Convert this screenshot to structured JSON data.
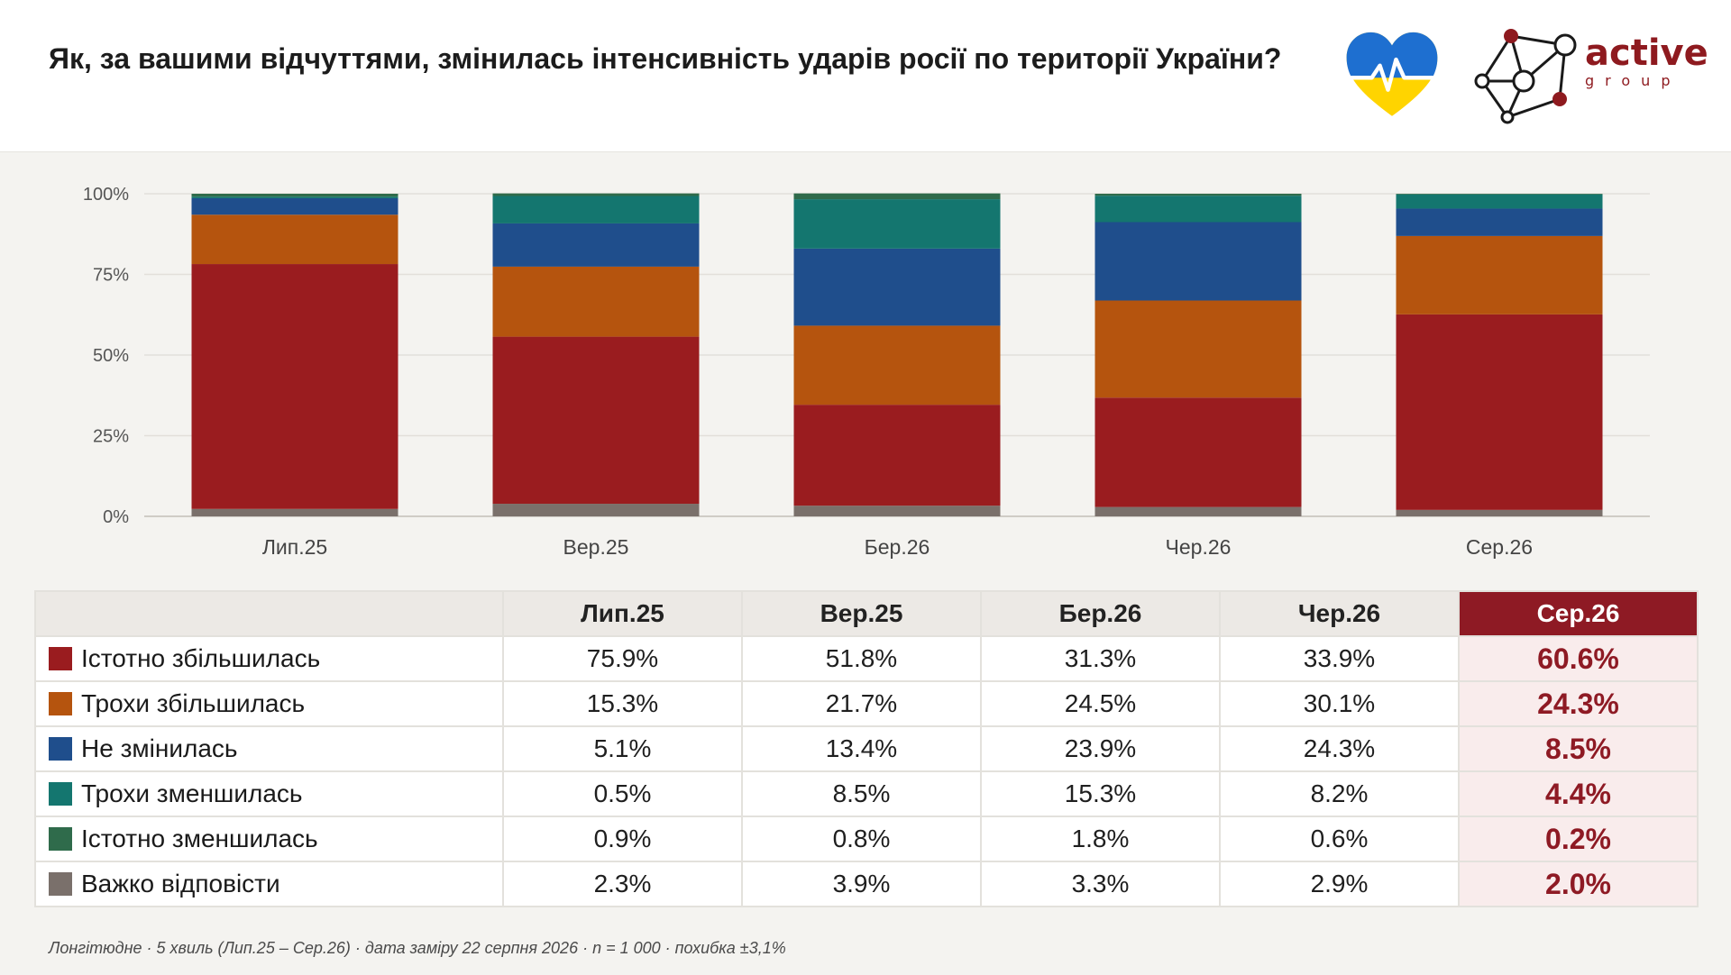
{
  "title": "Як, за вашими відчуттями, змінилась інтенсивність ударів росії по території України?",
  "logo": {
    "word": "active",
    "subword": "group"
  },
  "footnote": "Лонгітюдне · 5 хвиль (Лип.25 – Сер.26) · дата заміру 22 серпня 2026 · n = 1 000 · похибка ±3,1%",
  "colors": {
    "background_panel": "#f4f3f0",
    "highlight": "#8e1a24",
    "highlight_light": "#f9ecec"
  },
  "chart_data": {
    "type": "bar",
    "stacked": true,
    "categories": [
      "Лип.25",
      "Вер.25",
      "Бер.26",
      "Чер.26",
      "Сер.26"
    ],
    "ylim": [
      0,
      100
    ],
    "yticks": [
      "0%",
      "25%",
      "50%",
      "75%",
      "100%"
    ],
    "yticks_values": [
      0,
      25,
      50,
      75,
      100
    ],
    "grid": true,
    "stack_order_bottom_to_top": [
      "Важко відповісти",
      "Істотно збільшилась",
      "Трохи збільшилась",
      "Не змінилась",
      "Трохи зменшилась",
      "Істотно зменшилась"
    ],
    "series": [
      {
        "name": "Істотно збільшилась",
        "color": "#9a1c1f",
        "values": [
          75.9,
          51.8,
          31.3,
          33.9,
          60.6
        ]
      },
      {
        "name": "Трохи збільшилась",
        "color": "#b5540e",
        "values": [
          15.3,
          21.7,
          24.5,
          30.1,
          24.3
        ]
      },
      {
        "name": "Не змінилась",
        "color": "#1f4e8c",
        "values": [
          5.1,
          13.4,
          23.9,
          24.3,
          8.5
        ]
      },
      {
        "name": "Трохи зменшилась",
        "color": "#14766f",
        "values": [
          0.5,
          8.5,
          15.3,
          8.2,
          4.4
        ]
      },
      {
        "name": "Істотно зменшилась",
        "color": "#2f6b4b",
        "values": [
          0.9,
          0.8,
          1.8,
          0.6,
          0.2
        ]
      },
      {
        "name": "Важко відповісти",
        "color": "#7a706b",
        "values": [
          2.3,
          3.9,
          3.3,
          2.9,
          2.0
        ]
      }
    ]
  },
  "table": {
    "header": [
      "",
      "Лип.25",
      "Вер.25",
      "Бер.26",
      "Чер.26",
      "Сер.26"
    ],
    "highlight_column": 5,
    "rows": [
      {
        "label": "Істотно збільшилась",
        "color": "#9a1c1f",
        "cells": [
          "75.9%",
          "51.8%",
          "31.3%",
          "33.9%",
          "60.6%"
        ]
      },
      {
        "label": "Трохи збільшилась",
        "color": "#b5540e",
        "cells": [
          "15.3%",
          "21.7%",
          "24.5%",
          "30.1%",
          "24.3%"
        ]
      },
      {
        "label": "Не змінилась",
        "color": "#1f4e8c",
        "cells": [
          "5.1%",
          "13.4%",
          "23.9%",
          "24.3%",
          "8.5%"
        ]
      },
      {
        "label": "Трохи зменшилась",
        "color": "#14766f",
        "cells": [
          "0.5%",
          "8.5%",
          "15.3%",
          "8.2%",
          "4.4%"
        ]
      },
      {
        "label": "Істотно зменшилась",
        "color": "#2f6b4b",
        "cells": [
          "0.9%",
          "0.8%",
          "1.8%",
          "0.6%",
          "0.2%"
        ]
      },
      {
        "label": "Важко відповісти",
        "color": "#7a706b",
        "cells": [
          "2.3%",
          "3.9%",
          "3.3%",
          "2.9%",
          "2.0%"
        ]
      }
    ]
  }
}
